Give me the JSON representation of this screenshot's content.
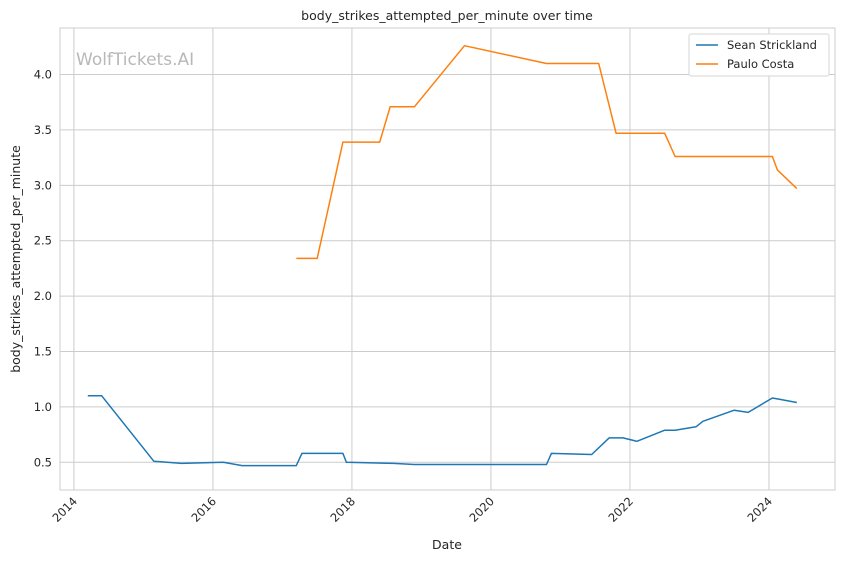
{
  "chart_data": {
    "type": "line",
    "title": "body_strikes_attempted_per_minute over time",
    "xlabel": "Date",
    "ylabel": "body_strikes_attempted_per_minute",
    "watermark": "WolfTickets.AI",
    "xlim": [
      2013.8,
      2024.95
    ],
    "ylim": [
      0.25,
      4.42
    ],
    "x_ticks": [
      {
        "value": 2014,
        "label": "2014"
      },
      {
        "value": 2016,
        "label": "2016"
      },
      {
        "value": 2018,
        "label": "2018"
      },
      {
        "value": 2020,
        "label": "2020"
      },
      {
        "value": 2022,
        "label": "2022"
      },
      {
        "value": 2024,
        "label": "2024"
      }
    ],
    "y_ticks": [
      {
        "value": 0.5,
        "label": "0.5"
      },
      {
        "value": 1.0,
        "label": "1.0"
      },
      {
        "value": 1.5,
        "label": "1.5"
      },
      {
        "value": 2.0,
        "label": "2.0"
      },
      {
        "value": 2.5,
        "label": "2.5"
      },
      {
        "value": 3.0,
        "label": "3.0"
      },
      {
        "value": 3.5,
        "label": "3.5"
      },
      {
        "value": 4.0,
        "label": "4.0"
      }
    ],
    "grid": true,
    "legend": "top-right",
    "series": [
      {
        "name": "Sean Strickland",
        "color": "#1f77b4",
        "x": [
          2014.2,
          2014.4,
          2015.15,
          2015.55,
          2016.15,
          2016.42,
          2017.2,
          2017.28,
          2017.87,
          2017.92,
          2018.6,
          2018.9,
          2020.8,
          2020.87,
          2021.45,
          2021.7,
          2021.9,
          2022.1,
          2022.5,
          2022.65,
          2022.95,
          2023.05,
          2023.5,
          2023.7,
          2024.05,
          2024.15,
          2024.4
        ],
        "y": [
          1.1,
          1.1,
          0.51,
          0.49,
          0.5,
          0.47,
          0.47,
          0.58,
          0.58,
          0.5,
          0.49,
          0.48,
          0.48,
          0.58,
          0.57,
          0.72,
          0.72,
          0.69,
          0.79,
          0.79,
          0.82,
          0.87,
          0.97,
          0.95,
          1.08,
          1.07,
          1.04
        ]
      },
      {
        "name": "Paulo Costa",
        "color": "#ff7f0e",
        "x": [
          2017.2,
          2017.5,
          2017.87,
          2018.4,
          2018.55,
          2018.9,
          2019.62,
          2020.8,
          2021.55,
          2021.8,
          2022.5,
          2022.65,
          2024.05,
          2024.12,
          2024.4
        ],
        "y": [
          2.34,
          2.34,
          3.39,
          3.39,
          3.71,
          3.71,
          4.26,
          4.1,
          4.1,
          3.47,
          3.47,
          3.26,
          3.26,
          3.14,
          2.97
        ]
      }
    ]
  }
}
